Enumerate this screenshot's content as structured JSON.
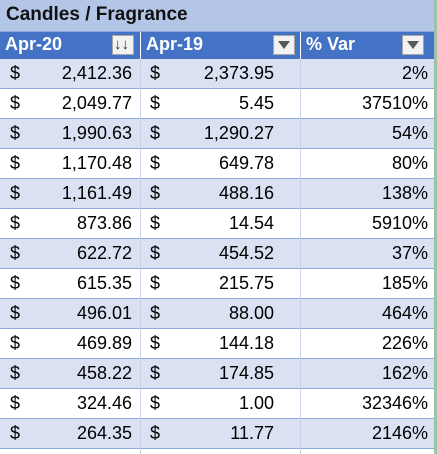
{
  "title": "Candles / Fragrance",
  "headers": {
    "col1": "Apr-20",
    "col2": "Apr-19",
    "col3": "% Var"
  },
  "currency_symbol": "$",
  "rows": [
    {
      "apr20": "2,412.36",
      "apr19": "2,373.95",
      "var": "2%"
    },
    {
      "apr20": "2,049.77",
      "apr19": "5.45",
      "var": "37510%"
    },
    {
      "apr20": "1,990.63",
      "apr19": "1,290.27",
      "var": "54%"
    },
    {
      "apr20": "1,170.48",
      "apr19": "649.78",
      "var": "80%"
    },
    {
      "apr20": "1,161.49",
      "apr19": "488.16",
      "var": "138%"
    },
    {
      "apr20": "873.86",
      "apr19": "14.54",
      "var": "5910%"
    },
    {
      "apr20": "622.72",
      "apr19": "454.52",
      "var": "37%"
    },
    {
      "apr20": "615.35",
      "apr19": "215.75",
      "var": "185%"
    },
    {
      "apr20": "496.01",
      "apr19": "88.00",
      "var": "464%"
    },
    {
      "apr20": "469.89",
      "apr19": "144.18",
      "var": "226%"
    },
    {
      "apr20": "458.22",
      "apr19": "174.85",
      "var": "162%"
    },
    {
      "apr20": "324.46",
      "apr19": "1.00",
      "var": "32346%"
    },
    {
      "apr20": "264.35",
      "apr19": "11.77",
      "var": "2146%"
    }
  ],
  "colors": {
    "title_bg": "#b4c6e7",
    "header_bg": "#4472c4",
    "band": "#d9e1f2"
  }
}
